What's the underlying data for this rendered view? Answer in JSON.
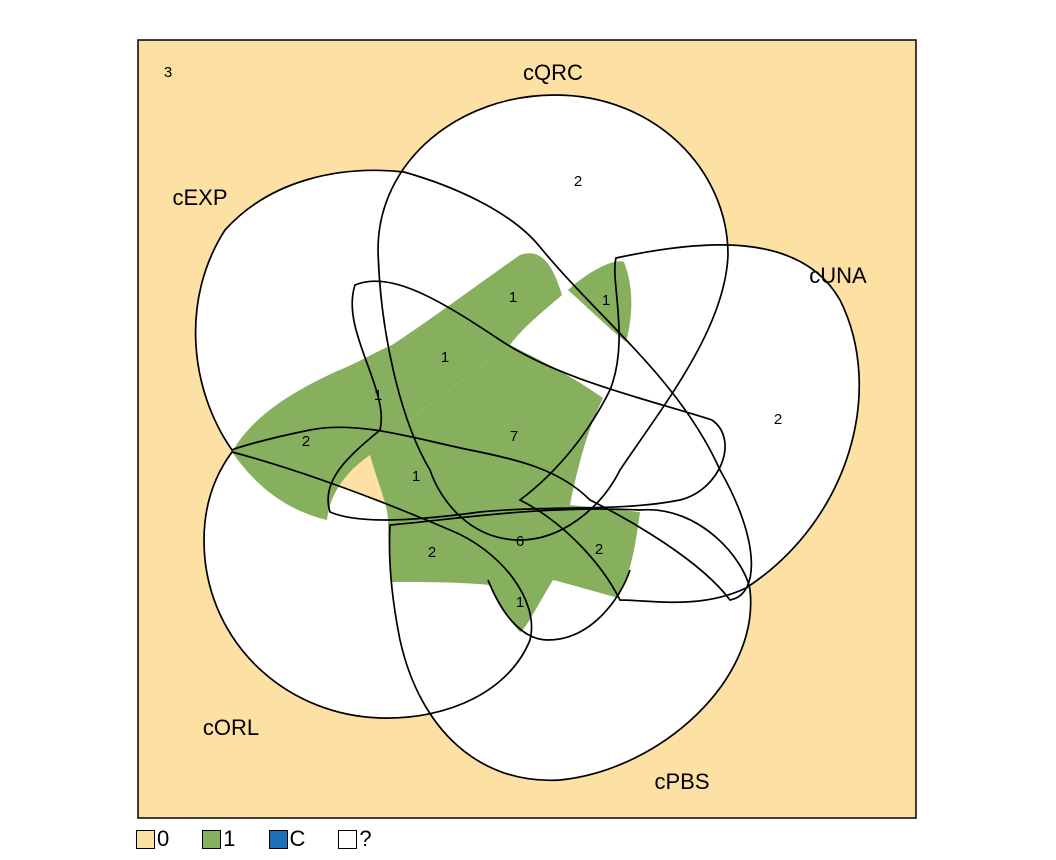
{
  "diagram": {
    "type": "venn",
    "outside_count": "3",
    "sets": [
      {
        "name": "cQRC"
      },
      {
        "name": "cEXP"
      },
      {
        "name": "cUNA"
      },
      {
        "name": "cORL"
      },
      {
        "name": "cPBS"
      }
    ],
    "region_counts": [
      "2",
      "2",
      "1",
      "1",
      "1",
      "1",
      "2",
      "7",
      "1",
      "2",
      "6",
      "2",
      "1"
    ],
    "colors": {
      "background": "#FDE0A4",
      "value_0": "#FDE0A4",
      "value_1": "#86B05E",
      "value_C": "#1A6FB7",
      "value_unknown": "#FFFFFF",
      "outline": "#000000"
    }
  },
  "legend": [
    {
      "label": "0",
      "color": "#FDE0A4"
    },
    {
      "label": "1",
      "color": "#86B05E"
    },
    {
      "label": "C",
      "color": "#1A6FB7"
    },
    {
      "label": "?",
      "color": "#FFFFFF"
    }
  ]
}
